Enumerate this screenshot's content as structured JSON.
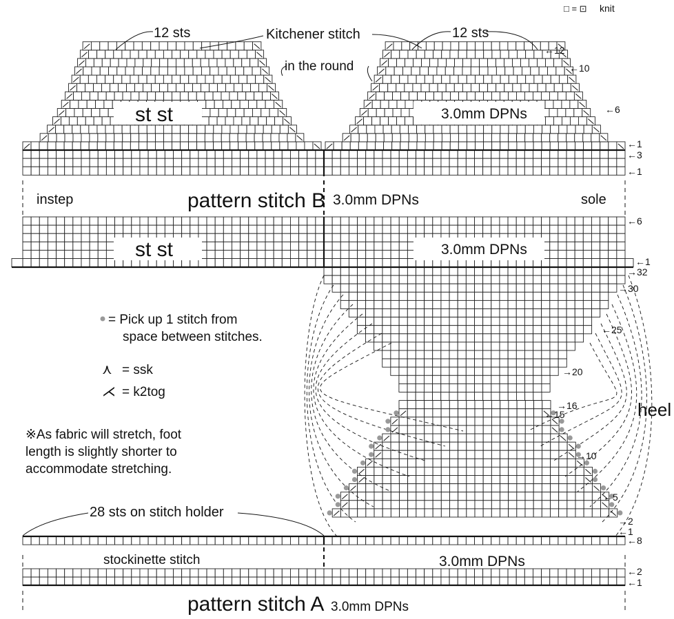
{
  "legend": {
    "symbol": "□ = ⊡",
    "label": "knit"
  },
  "labels": {
    "kitchener": "Kitchener stitch",
    "twelve_sts_left": "12 sts",
    "twelve_sts_right": "12 sts",
    "in_the_round": "in the round",
    "st_st_top": "st st",
    "dpn_top": "3.0mm DPNs",
    "instep": "instep",
    "pattern_b": "pattern stitch B",
    "dpn_mid": "3.0mm DPNs",
    "sole": "sole",
    "st_st_lower": "st st",
    "dpn_lower": "3.0mm DPNs",
    "pickup_note_1": "= Pick up 1 stitch from",
    "pickup_note_2": "space between stitches.",
    "ssk_symbol": "⋏",
    "ssk_label": "=  ssk",
    "k2tog_symbol": "⋌",
    "k2tog_label": "=  k2tog",
    "note_1": "※As fabric will stretch, foot",
    "note_2": "length is slightly shorter to",
    "note_3": "accommodate stretching.",
    "heel": "heel",
    "holder": "28 sts on stitch holder",
    "stockinette": "stockinette stitch",
    "dpn_bottom": "3.0mm DPNs",
    "pattern_a": "pattern stitch A",
    "dpn_a": "3.0mm DPNs"
  },
  "row_numbers": {
    "toe": [
      "←12",
      "←10",
      "←6",
      "←1",
      "←3",
      "←1"
    ],
    "mid": [
      "←6",
      "←1"
    ],
    "heel_right": [
      "→32",
      "→30",
      "←25",
      "→20",
      "→16",
      "←15",
      "→10",
      "←5",
      "→2",
      "←1",
      "←8"
    ],
    "bottom": [
      "←2",
      "←1"
    ]
  }
}
